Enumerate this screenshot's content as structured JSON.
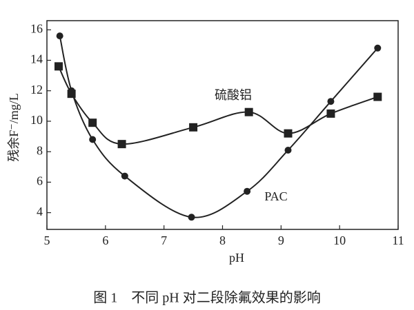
{
  "chart_data": {
    "type": "line",
    "x_label": "pH",
    "y_label": "残余F⁻/mg/L",
    "caption": "图 1　不同 pH 对二段除氟效果的影响",
    "annotations": [
      "硫酸铝",
      "PAC"
    ],
    "xlim": [
      5,
      11
    ],
    "xticks": [
      5,
      6,
      7,
      8,
      9,
      10,
      11
    ],
    "ylim": [
      2.9,
      16.6
    ],
    "yticks": [
      4,
      6,
      8,
      10,
      12,
      14,
      16
    ],
    "smooth": true,
    "series": [
      {
        "name": "硫酸铝",
        "color": "#222222",
        "marker": "square",
        "x": [
          5.2,
          5.42,
          5.78,
          6.28,
          7.5,
          8.45,
          9.12,
          9.85,
          10.65
        ],
        "values": [
          13.6,
          11.8,
          9.9,
          8.5,
          9.6,
          10.6,
          9.2,
          10.5,
          11.6
        ]
      },
      {
        "name": "PAC",
        "color": "#222222",
        "marker": "circle",
        "x": [
          5.22,
          5.42,
          5.78,
          6.33,
          7.47,
          8.42,
          9.12,
          9.85,
          10.65
        ],
        "values": [
          15.6,
          12.0,
          8.8,
          6.4,
          3.7,
          5.4,
          8.1,
          11.3,
          14.8
        ]
      }
    ]
  }
}
